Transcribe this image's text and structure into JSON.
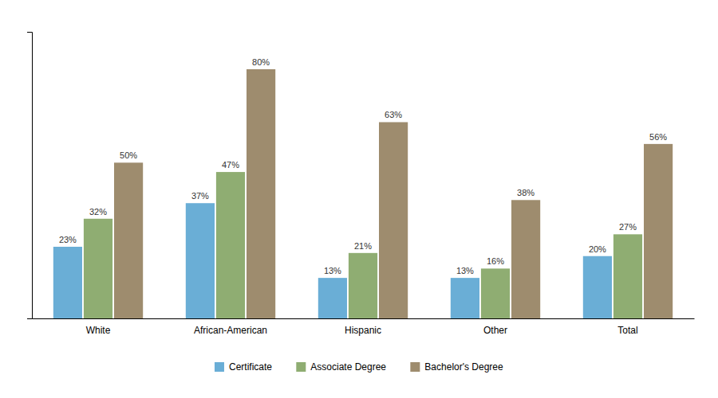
{
  "chart_data": {
    "type": "bar",
    "categories": [
      "White",
      "African-American",
      "Hispanic",
      "Other",
      "Total"
    ],
    "series": [
      {
        "name": "Certificate",
        "color": "#6aaed6",
        "values": [
          23,
          37,
          13,
          13,
          20
        ],
        "value_labels": [
          "23%",
          "37%",
          "13%",
          "13%",
          "20%"
        ]
      },
      {
        "name": "Associate Degree",
        "color": "#8fad72",
        "values": [
          32,
          47,
          21,
          16,
          27
        ],
        "value_labels": [
          "32%",
          "47%",
          "21%",
          "16%",
          "27%"
        ]
      },
      {
        "name": "Bachelor's Degree",
        "color": "#9e8c6e",
        "values": [
          50,
          80,
          63,
          38,
          56
        ],
        "value_labels": [
          "50%",
          "80%",
          "63%",
          "38%",
          "56%"
        ]
      }
    ],
    "ylim": [
      0,
      92
    ],
    "data_labels": true,
    "tick_labels": "x",
    "grid": false,
    "legend": "bottom"
  }
}
